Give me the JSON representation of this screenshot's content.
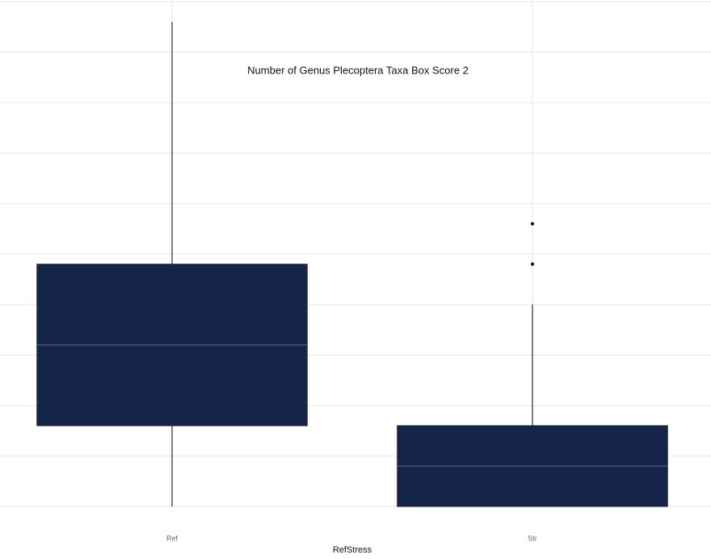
{
  "chart_data": {
    "type": "box",
    "title": "Number of Genus Plecoptera Taxa Box Score 2",
    "x_label": "RefStress",
    "categories": [
      "Ref",
      "Str"
    ],
    "boxes": [
      {
        "whislo": 0,
        "q1": 2,
        "med": 4,
        "q3": 6,
        "whishi": 12,
        "outliers": []
      },
      {
        "whislo": 0,
        "q1": 0,
        "med": 1,
        "q3": 2,
        "whishi": 5,
        "outliers": [
          7,
          6
        ]
      }
    ],
    "color": "#15254a",
    "median_color": "#3b4662",
    "ylim": [
      0,
      12.5
    ],
    "yticks": [
      0,
      1.25,
      2.5,
      3.75,
      5,
      6.25,
      7.5,
      8.75,
      10,
      11.25,
      12.5
    ],
    "grid": true
  }
}
